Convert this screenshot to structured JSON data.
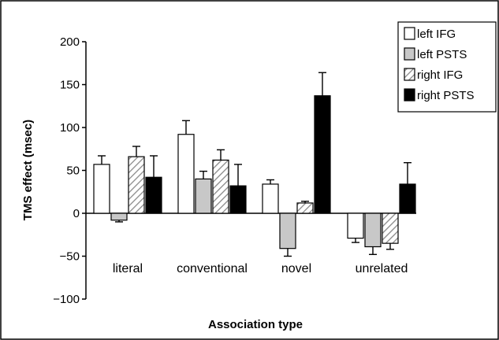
{
  "chart_data": {
    "type": "bar",
    "title": "",
    "xlabel": "Association type",
    "ylabel": "TMS effect (msec)",
    "ylim": [
      -100,
      200
    ],
    "yticks": [
      -100,
      -50,
      0,
      50,
      100,
      150,
      200
    ],
    "ytick_labels": [
      "−100",
      "−50",
      "0",
      "50",
      "100",
      "150",
      "200"
    ],
    "categories": [
      "literal",
      "conventional",
      "novel",
      "unrelated"
    ],
    "series": [
      {
        "name": "left IFG",
        "values": [
          57,
          92,
          34,
          -29
        ],
        "errors": [
          10,
          16,
          5,
          5
        ],
        "fill": "#ffffff",
        "pattern": "none"
      },
      {
        "name": "left PSTS",
        "values": [
          -8,
          40,
          -41,
          -39
        ],
        "errors": [
          2,
          9,
          9,
          9
        ],
        "fill": "#c8c8c8",
        "pattern": "none"
      },
      {
        "name": "right IFG",
        "values": [
          66,
          62,
          12,
          -35
        ],
        "errors": [
          12,
          12,
          2,
          7
        ],
        "fill": "#ffffff",
        "pattern": "hatch"
      },
      {
        "name": "right PSTS",
        "values": [
          42,
          32,
          137,
          34
        ],
        "errors": [
          25,
          25,
          27,
          25
        ],
        "fill": "#000000",
        "pattern": "none"
      }
    ],
    "grid": false,
    "legend_position": "top-right",
    "error_bars": true
  }
}
